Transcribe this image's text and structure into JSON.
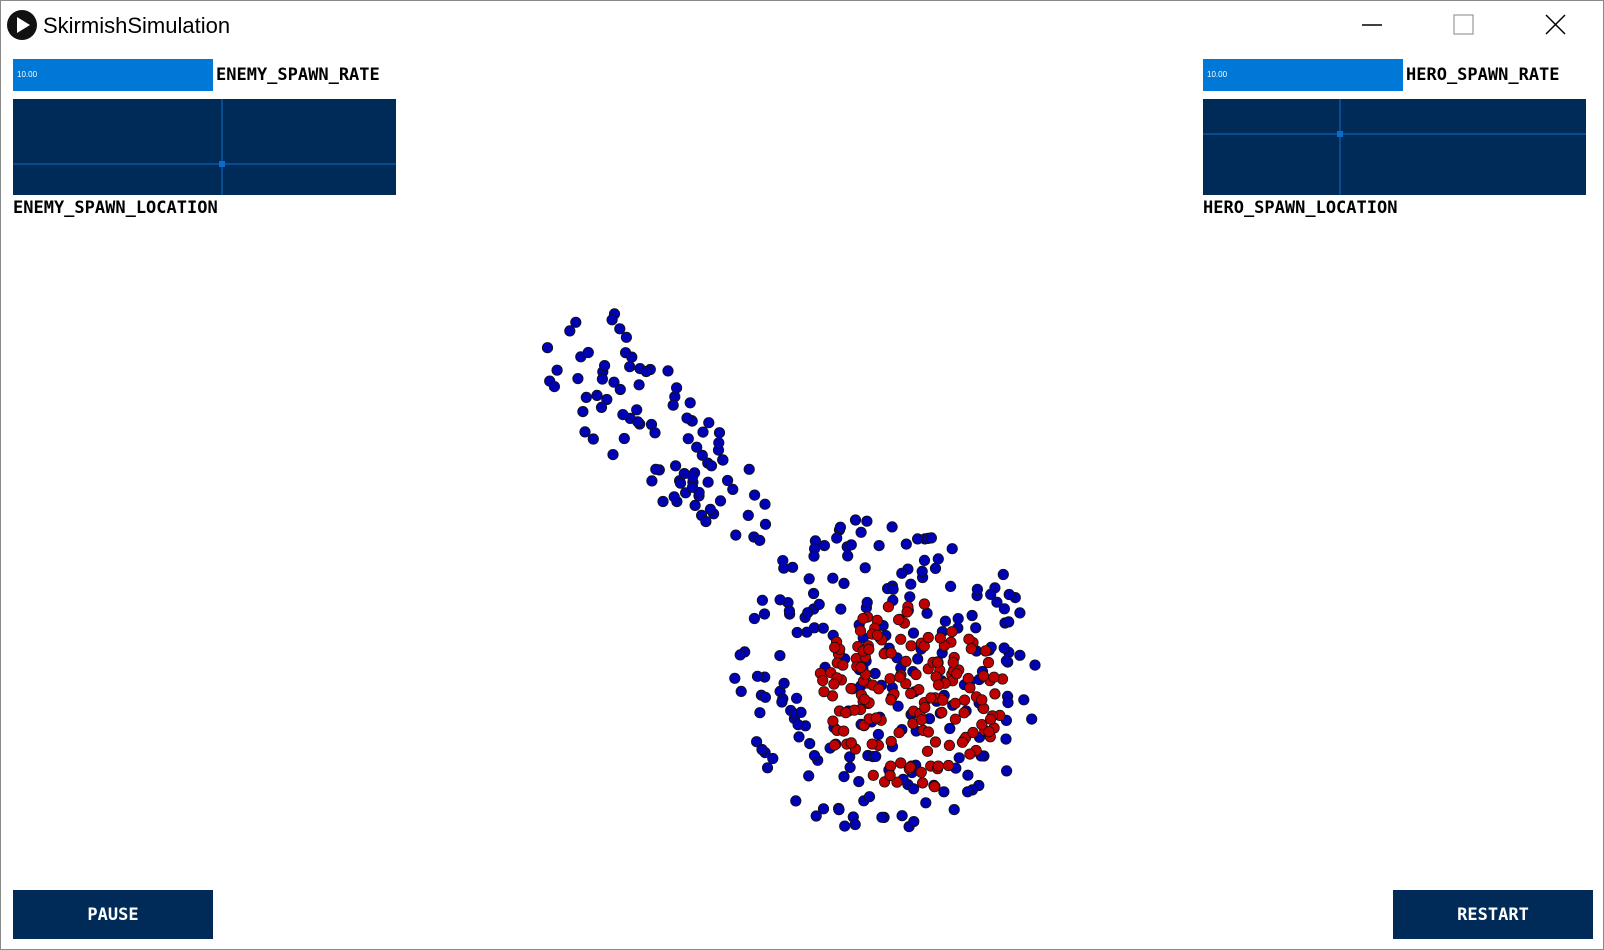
{
  "window": {
    "title": "SkirmishSimulation"
  },
  "controls": {
    "enemy_spawn_rate": {
      "label": "ENEMY_SPAWN_RATE",
      "value": "10.00"
    },
    "enemy_spawn_location": {
      "label": "ENEMY_SPAWN_LOCATION"
    },
    "hero_spawn_rate": {
      "label": "HERO_SPAWN_RATE",
      "value": "10.00"
    },
    "hero_spawn_location": {
      "label": "HERO_SPAWN_LOCATION"
    },
    "pause": {
      "label": "PAUSE"
    },
    "restart": {
      "label": "RESTART"
    }
  }
}
